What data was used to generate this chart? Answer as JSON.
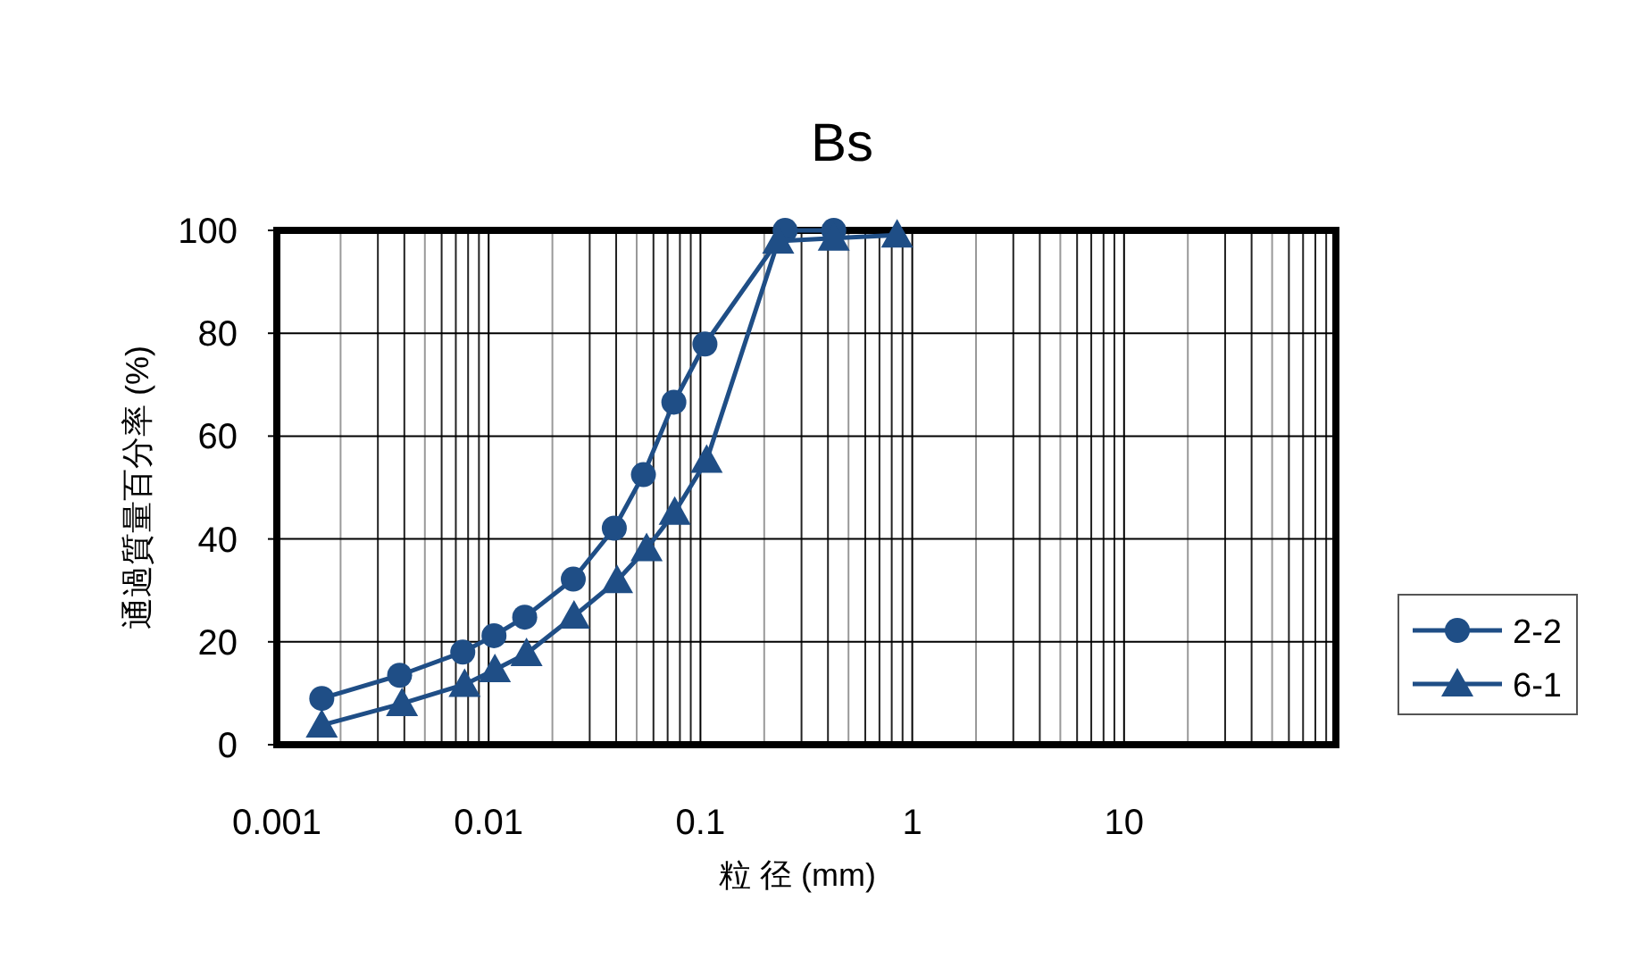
{
  "chart_data": {
    "type": "line",
    "title": "Bs",
    "xlabel": "粒 径 (mm)",
    "ylabel": "通過質量百分率 (%)",
    "log": "x",
    "xlim": [
      0.001,
      100
    ],
    "xticks": [
      0.001,
      0.01,
      0.1,
      1,
      10,
      {
        "value": 100,
        "label": null
      }
    ],
    "ylim": [
      0,
      100
    ],
    "yticks": [
      0,
      20,
      40,
      60,
      80,
      100
    ],
    "grid": true,
    "legend": "right",
    "line_style": "solid",
    "series": [
      {
        "name": "2-2",
        "color": "#1f4e86",
        "marker": "circle",
        "x": [
          0.00163,
          0.0038,
          0.00755,
          0.0106,
          0.0148,
          0.0251,
          0.0392,
          0.0538,
          0.0749,
          0.105,
          0.251,
          0.426
        ],
        "values": [
          9.0,
          13.5,
          18.0,
          21.2,
          24.8,
          32.2,
          42.1,
          52.5,
          66.6,
          77.9,
          100,
          100
        ]
      },
      {
        "name": "6-1",
        "color": "#1f4e86",
        "marker": "triangle",
        "x": [
          0.00163,
          0.0039,
          0.0077,
          0.0107,
          0.0151,
          0.0253,
          0.0404,
          0.0557,
          0.0756,
          0.107,
          0.233,
          0.426,
          0.848
        ],
        "values": [
          3.8,
          8.0,
          11.7,
          14.6,
          17.7,
          25.0,
          31.9,
          38.1,
          45.2,
          55.3,
          97.9,
          98.5,
          99.1
        ]
      }
    ]
  }
}
